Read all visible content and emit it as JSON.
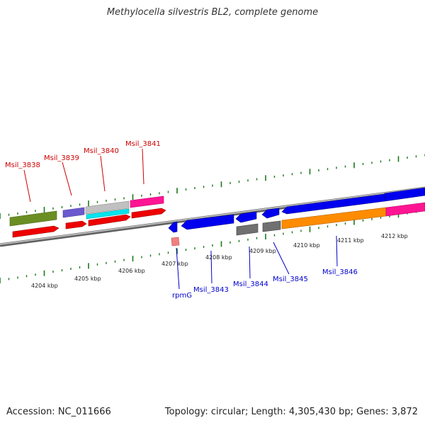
{
  "title": "Methylocella silvestris BL2, complete genome",
  "accession": "Accession: NC_011666",
  "topology": "Topology: circular; Length: 4,305,430 bp; Genes: 3,872",
  "kbp_ticks": [
    "4204 kbp",
    "4205 kbp",
    "4206 kbp",
    "4207 kbp",
    "4208 kbp",
    "4209 kbp",
    "4210 kbp",
    "4211 kbp",
    "4212 kbp"
  ],
  "upper_gene_labels": [
    "Msil_3838",
    "Msil_3839",
    "Msil_3840",
    "Msil_3841"
  ],
  "lower_gene_labels": [
    "rpmG",
    "Msil_3843",
    "Msil_3844",
    "Msil_3845",
    "Msil_3846"
  ],
  "colors": {
    "forward_gene": "#0000ee",
    "reverse_gene": "#ee0000",
    "upper_label": "#cc0000",
    "lower_label": "#0000cc",
    "tick": "#1a7a1a",
    "backbone": "#888888",
    "olive": "#6b8e23",
    "slate": "#6a5acd",
    "cyan": "#00e5ee",
    "silver": "#c0c0c0",
    "magenta": "#ff1493",
    "orange": "#ff8c00",
    "grey_gene": "#707070",
    "pink": "#f08080"
  }
}
